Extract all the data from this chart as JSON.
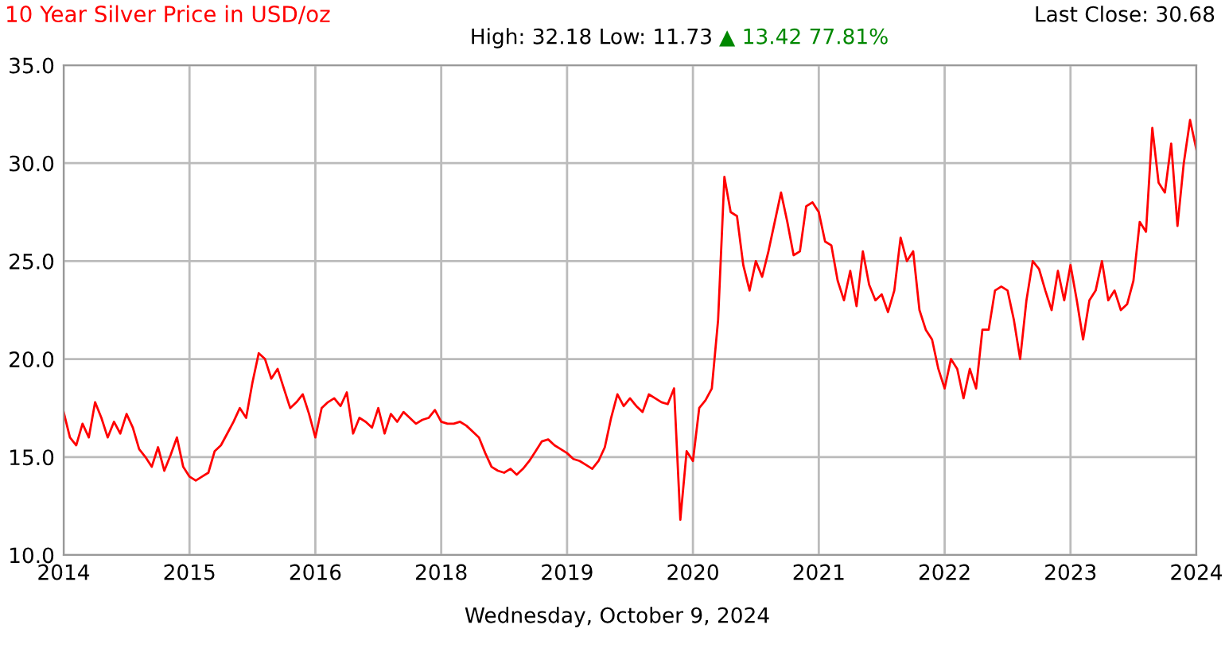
{
  "chart_data": {
    "type": "line",
    "title": "10 Year Silver Price in USD/oz",
    "xlabel": "Wednesday, October 9, 2024",
    "annotations": [
      "High: 32.18 Low: 11.73",
      "▲ 13.42 77.81%",
      "Last Close: 30.68"
    ],
    "categories": [
      "2014",
      null,
      null,
      null,
      null,
      null,
      null,
      null,
      null,
      null,
      null,
      null,
      null,
      null,
      null,
      null,
      null,
      null,
      null,
      null,
      "2015",
      null,
      null,
      null,
      null,
      null,
      null,
      null,
      null,
      null,
      null,
      null,
      null,
      null,
      null,
      null,
      null,
      null,
      null,
      null,
      "2016",
      null,
      null,
      null,
      null,
      null,
      null,
      null,
      null,
      null,
      null,
      null,
      null,
      null,
      null,
      null,
      null,
      null,
      null,
      null,
      "2018",
      null,
      null,
      null,
      null,
      null,
      null,
      null,
      null,
      null,
      null,
      null,
      null,
      null,
      null,
      null,
      null,
      null,
      null,
      null,
      "2019",
      null,
      null,
      null,
      null,
      null,
      null,
      null,
      null,
      null,
      null,
      null,
      null,
      null,
      null,
      null,
      null,
      null,
      null,
      null,
      "2020",
      null,
      null,
      null,
      null,
      null,
      null,
      null,
      null,
      null,
      null,
      null,
      null,
      null,
      null,
      null,
      null,
      null,
      null,
      null,
      "2021",
      null,
      null,
      null,
      null,
      null,
      null,
      null,
      null,
      null,
      null,
      null,
      null,
      null,
      null,
      null,
      null,
      null,
      null,
      null,
      "2022",
      null,
      null,
      null,
      null,
      null,
      null,
      null,
      null,
      null,
      null,
      null,
      null,
      null,
      null,
      null,
      null,
      null,
      null,
      null,
      "2023",
      null,
      null,
      null,
      null,
      null,
      null,
      null,
      null,
      null,
      null,
      null,
      null,
      null,
      null,
      null,
      null,
      null,
      null,
      null,
      "2024"
    ],
    "series": [
      {
        "color": "#ff0000",
        "values": [
          17.3,
          16.0,
          15.6,
          16.7,
          16.0,
          17.8,
          17.0,
          16.0,
          16.8,
          16.2,
          17.2,
          16.5,
          15.4,
          15.0,
          14.5,
          15.5,
          14.3,
          15.1,
          16.0,
          14.5,
          14.0,
          13.8,
          14.0,
          14.2,
          15.3,
          15.6,
          16.2,
          16.8,
          17.5,
          17.0,
          18.8,
          20.3,
          20.0,
          19.0,
          19.5,
          18.5,
          17.5,
          17.8,
          18.2,
          17.2,
          16.0,
          17.5,
          17.8,
          18.0,
          17.6,
          18.3,
          16.2,
          17.0,
          16.8,
          16.5,
          17.5,
          16.2,
          17.2,
          16.8,
          17.3,
          17.0,
          16.7,
          16.9,
          17.0,
          17.4,
          16.8,
          16.7,
          16.7,
          16.8,
          16.6,
          16.3,
          16.0,
          15.2,
          14.5,
          14.3,
          14.2,
          14.4,
          14.1,
          14.4,
          14.8,
          15.3,
          15.8,
          15.9,
          15.6,
          15.4,
          15.2,
          14.9,
          14.8,
          14.6,
          14.4,
          14.8,
          15.5,
          17.0,
          18.2,
          17.6,
          18.0,
          17.6,
          17.3,
          18.2,
          18.0,
          17.8,
          17.7,
          18.5,
          11.8,
          15.3,
          14.8,
          17.5,
          17.9,
          18.5,
          22.0,
          29.3,
          27.5,
          27.3,
          24.8,
          23.5,
          25.0,
          24.2,
          25.5,
          27.0,
          28.5,
          27.0,
          25.3,
          25.5,
          27.8,
          28.0,
          27.5,
          26.0,
          25.8,
          24.0,
          23.0,
          24.5,
          22.7,
          25.5,
          23.8,
          23.0,
          23.3,
          22.4,
          23.5,
          26.2,
          25.0,
          25.5,
          22.5,
          21.5,
          21.0,
          19.5,
          18.5,
          20.0,
          19.5,
          18.0,
          19.5,
          18.5,
          21.5,
          21.5,
          23.5,
          23.7,
          23.5,
          22.0,
          20.0,
          23.0,
          25.0,
          24.6,
          23.5,
          22.5,
          24.5,
          23.0,
          24.8,
          23.0,
          21.0,
          23.0,
          23.5,
          25.0,
          23.0,
          23.5,
          22.5,
          22.8,
          24.0,
          27.0,
          26.5,
          31.8,
          29.0,
          28.5,
          31.0,
          26.8,
          30.0,
          32.2,
          30.7
        ]
      }
    ],
    "ylim": [
      10,
      35
    ],
    "yticks": [
      {
        "value": 10,
        "label": "10.0"
      },
      {
        "value": 15,
        "label": "15.0"
      },
      {
        "value": 20,
        "label": "20.0"
      },
      {
        "value": 25,
        "label": "25.0"
      },
      {
        "value": 30,
        "label": "30.0"
      },
      {
        "value": 35,
        "label": "35.0"
      }
    ],
    "grid": true,
    "legend": false
  }
}
